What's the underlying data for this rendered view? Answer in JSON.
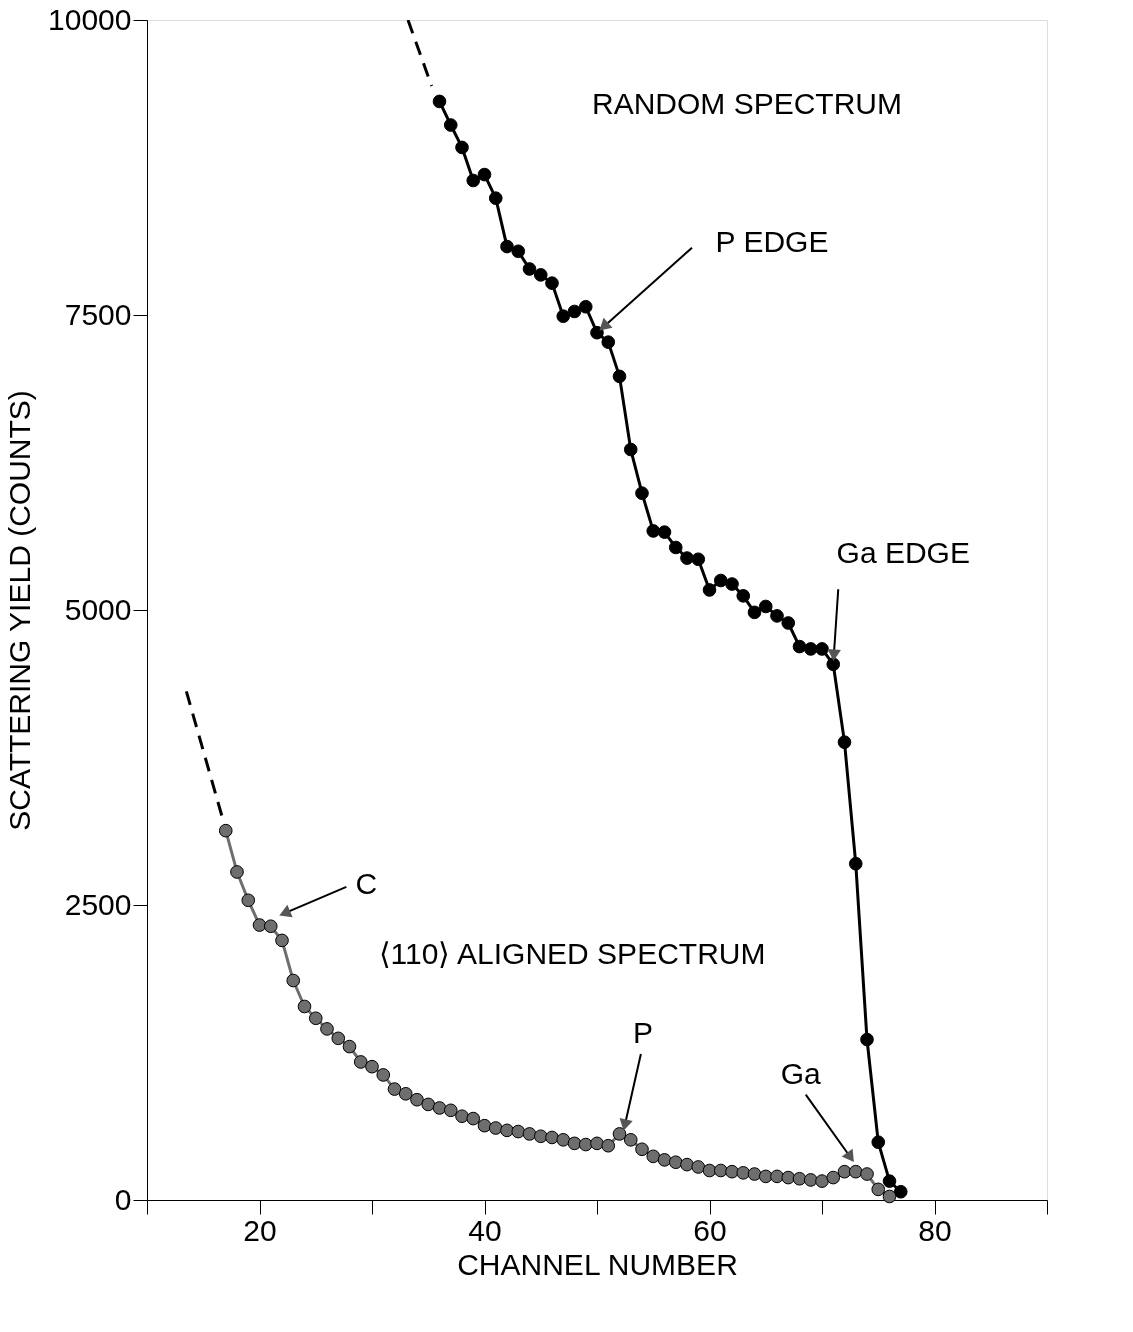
{
  "chart_data": {
    "type": "line",
    "xlabel": "CHANNEL NUMBER",
    "ylabel": "SCATTERING YIELD (COUNTS)",
    "xlim": [
      10,
      90
    ],
    "xticks": [
      {
        "value": 10,
        "label": null
      },
      20,
      {
        "value": 30,
        "label": null
      },
      40,
      {
        "value": 50,
        "label": null
      },
      60,
      {
        "value": 70,
        "label": null
      },
      80,
      {
        "value": 90,
        "label": null
      }
    ],
    "ylim": [
      0,
      10000
    ],
    "yticks": [
      0,
      2500,
      5000,
      7500,
      10000
    ],
    "grid": false,
    "series": [
      {
        "color": "#000000",
        "marker": "circle",
        "line_style": "solid",
        "x": [
          36,
          37,
          38,
          39,
          40,
          41,
          42,
          43,
          44,
          45,
          46,
          47,
          48,
          49,
          50,
          51,
          52,
          53,
          54,
          55,
          56,
          57,
          58,
          59,
          60,
          61,
          62,
          63,
          64,
          65,
          66,
          67,
          68,
          69,
          70,
          71,
          72,
          73,
          74,
          75,
          76,
          77
        ],
        "values": [
          9310,
          9110,
          8920,
          8640,
          8690,
          8490,
          8080,
          8040,
          7890,
          7840,
          7770,
          7490,
          7530,
          7570,
          7350,
          7270,
          6980,
          6360,
          5990,
          5670,
          5660,
          5530,
          5440,
          5430,
          5170,
          5250,
          5220,
          5120,
          4980,
          5030,
          4950,
          4890,
          4690,
          4670,
          4670,
          4540,
          3880,
          2850,
          1360,
          490,
          160,
          70
        ]
      },
      {
        "color": "#6e6e6e",
        "marker": "circle",
        "line_style": "solid",
        "x": [
          17,
          18,
          19,
          20,
          21,
          22,
          23,
          24,
          25,
          26,
          27,
          28,
          29,
          30,
          31,
          32,
          33,
          34,
          35,
          36,
          37,
          38,
          39,
          40,
          41,
          42,
          43,
          44,
          45,
          46,
          47,
          48,
          49,
          50,
          51,
          52,
          53,
          54,
          55,
          56,
          57,
          58,
          59,
          60,
          61,
          62,
          63,
          64,
          65,
          66,
          67,
          68,
          69,
          70,
          71,
          72,
          73,
          74,
          75,
          76
        ],
        "values": [
          3130,
          2780,
          2540,
          2330,
          2320,
          2200,
          1860,
          1640,
          1540,
          1450,
          1370,
          1300,
          1170,
          1130,
          1060,
          940,
          900,
          850,
          810,
          780,
          760,
          710,
          690,
          630,
          610,
          590,
          580,
          560,
          540,
          530,
          510,
          480,
          470,
          480,
          460,
          560,
          510,
          430,
          370,
          340,
          320,
          300,
          280,
          250,
          250,
          240,
          230,
          220,
          200,
          200,
          190,
          180,
          170,
          160,
          190,
          240,
          240,
          220,
          90,
          30
        ]
      },
      {
        "color": "#000000",
        "marker": "none",
        "line_style": "dashed",
        "x": [
          33.2,
          35.3
        ],
        "values": [
          10000,
          9440
        ]
      },
      {
        "color": "#000000",
        "marker": "none",
        "line_style": "dashed",
        "x": [
          13.5,
          16.7
        ],
        "values": [
          4310,
          3240
        ]
      }
    ],
    "annotations": [
      "RANDOM SPECTRUM",
      {
        "text": "P EDGE",
        "x": 50,
        "y": 7350
      },
      {
        "text": "Ga EDGE",
        "x": 71,
        "y": 4540
      },
      {
        "text": "C",
        "x": 21.5,
        "y": 2400
      },
      "⟨110⟩ ALIGNED SPECTRUM",
      {
        "text": "P",
        "x": 52.3,
        "y": 560
      },
      {
        "text": "Ga",
        "x": 73,
        "y": 300
      }
    ]
  }
}
